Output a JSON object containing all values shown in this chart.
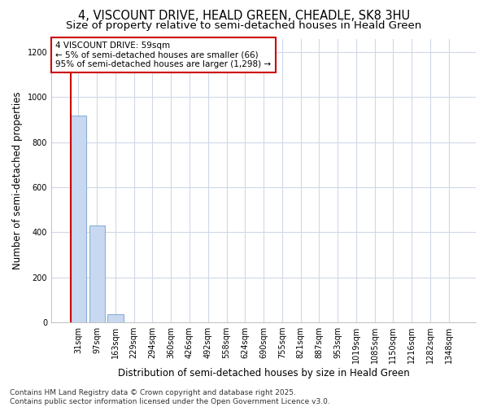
{
  "title": "4, VISCOUNT DRIVE, HEALD GREEN, CHEADLE, SK8 3HU",
  "subtitle": "Size of property relative to semi-detached houses in Heald Green",
  "xlabel": "Distribution of semi-detached houses by size in Heald Green",
  "ylabel": "Number of semi-detached properties",
  "bar_labels": [
    "31sqm",
    "97sqm",
    "163sqm",
    "229sqm",
    "294sqm",
    "360sqm",
    "426sqm",
    "492sqm",
    "558sqm",
    "624sqm",
    "690sqm",
    "755sqm",
    "821sqm",
    "887sqm",
    "953sqm",
    "1019sqm",
    "1085sqm",
    "1150sqm",
    "1216sqm",
    "1282sqm",
    "1348sqm"
  ],
  "bar_values": [
    920,
    430,
    35,
    0,
    0,
    0,
    0,
    0,
    0,
    0,
    0,
    0,
    0,
    0,
    0,
    0,
    0,
    0,
    0,
    0,
    0
  ],
  "bar_color": "#c8d8f0",
  "bar_edge_color": "#8ab0d8",
  "annotation_text": "4 VISCOUNT DRIVE: 59sqm\n← 5% of semi-detached houses are smaller (66)\n95% of semi-detached houses are larger (1,298) →",
  "annotation_box_facecolor": "#ffffff",
  "annotation_box_edgecolor": "#cc0000",
  "vline_color": "#cc0000",
  "vline_x": -0.42,
  "ylim_max": 1260,
  "yticks": [
    0,
    200,
    400,
    600,
    800,
    1000,
    1200
  ],
  "grid_color": "#d0d8e8",
  "bg_color": "#ffffff",
  "footer": "Contains HM Land Registry data © Crown copyright and database right 2025.\nContains public sector information licensed under the Open Government Licence v3.0.",
  "title_fontsize": 10.5,
  "subtitle_fontsize": 9.5,
  "axis_label_fontsize": 8.5,
  "tick_fontsize": 7,
  "annotation_fontsize": 7.5,
  "footer_fontsize": 6.5
}
